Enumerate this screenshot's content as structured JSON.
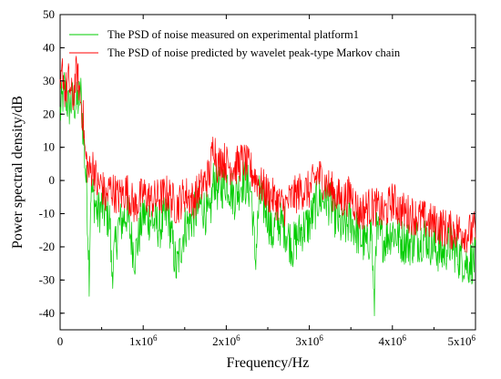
{
  "chart_data": {
    "type": "line",
    "title": "",
    "xlabel": "Frequency/Hz",
    "ylabel": "Power spectral density/dB",
    "xlim": [
      0,
      5000000
    ],
    "ylim": [
      -45,
      50
    ],
    "x_ticks": [
      {
        "value": 0,
        "base": "0",
        "exp": ""
      },
      {
        "value": 1000000,
        "base": "1x10",
        "exp": "6"
      },
      {
        "value": 2000000,
        "base": "2x10",
        "exp": "6"
      },
      {
        "value": 3000000,
        "base": "3x10",
        "exp": "6"
      },
      {
        "value": 4000000,
        "base": "4x10",
        "exp": "6"
      },
      {
        "value": 5000000,
        "base": "5x10",
        "exp": "6"
      }
    ],
    "y_ticks": [
      50,
      40,
      30,
      20,
      10,
      0,
      -10,
      -20,
      -30,
      -40
    ],
    "grid": false,
    "legend_position": "top-left",
    "series": [
      {
        "name": "The PSD of noise measured on experimental platform1",
        "color": "#00cc00",
        "x": [
          0,
          50000,
          100000,
          150000,
          200000,
          250000,
          300000,
          320000,
          350000,
          370000,
          400000,
          450000,
          500000,
          600000,
          620000,
          700000,
          800000,
          900000,
          1000000,
          1100000,
          1200000,
          1300000,
          1400000,
          1500000,
          1600000,
          1700000,
          1800000,
          1850000,
          1900000,
          1950000,
          2000000,
          2100000,
          2200000,
          2300000,
          2350000,
          2400000,
          2500000,
          2550000,
          2600000,
          2700000,
          2800000,
          2900000,
          3000000,
          3100000,
          3200000,
          3300000,
          3400000,
          3500000,
          3600000,
          3700000,
          3750000,
          3780000,
          3800000,
          3900000,
          4000000,
          4100000,
          4200000,
          4300000,
          4400000,
          4500000,
          4600000,
          4700000,
          4800000,
          4900000,
          5000000
        ],
        "values": [
          20,
          28,
          22,
          24,
          23,
          26,
          5,
          -3,
          -28,
          -2,
          -5,
          -10,
          -8,
          -12,
          -28,
          -14,
          -10,
          -23,
          -10,
          -12,
          -14,
          -10,
          -27,
          -14,
          -11,
          -7,
          -12,
          1,
          -3,
          -2,
          0,
          -5,
          0,
          -3,
          -24,
          -5,
          -10,
          -17,
          -12,
          -14,
          -20,
          -15,
          -13,
          -6,
          -5,
          -10,
          -15,
          -12,
          -17,
          -20,
          -14,
          -41,
          -16,
          -18,
          -15,
          -18,
          -19,
          -18,
          -17,
          -20,
          -22,
          -19,
          -23,
          -25,
          -24
        ]
      },
      {
        "name": "The PSD of noise predicted by wavelet peak-type Markov chain",
        "color": "#ff0000",
        "x": [
          0,
          30000,
          60000,
          100000,
          150000,
          200000,
          250000,
          280000,
          300000,
          350000,
          400000,
          450000,
          500000,
          550000,
          600000,
          700000,
          800000,
          900000,
          1000000,
          1100000,
          1200000,
          1300000,
          1400000,
          1500000,
          1600000,
          1700000,
          1800000,
          1850000,
          1900000,
          1950000,
          2000000,
          2100000,
          2200000,
          2300000,
          2400000,
          2500000,
          2600000,
          2700000,
          2800000,
          2900000,
          3000000,
          3100000,
          3200000,
          3300000,
          3400000,
          3500000,
          3600000,
          3700000,
          3800000,
          3900000,
          4000000,
          4100000,
          4200000,
          4300000,
          4400000,
          4500000,
          4600000,
          4700000,
          4800000,
          4900000,
          5000000
        ],
        "values": [
          25,
          34,
          26,
          30,
          24,
          33,
          24,
          18,
          8,
          2,
          5,
          -2,
          -1,
          -6,
          -2,
          -5,
          -3,
          -8,
          -4,
          -6,
          -5,
          -4,
          -8,
          -4,
          -6,
          -2,
          2,
          12,
          4,
          7,
          5,
          4,
          6,
          3,
          -1,
          -4,
          -6,
          -8,
          -5,
          -3,
          -3,
          2,
          -1,
          -4,
          -6,
          -4,
          -10,
          -8,
          -8,
          -10,
          -6,
          -9,
          -10,
          -11,
          -12,
          -13,
          -14,
          -15,
          -15,
          -16,
          -15
        ]
      }
    ]
  }
}
